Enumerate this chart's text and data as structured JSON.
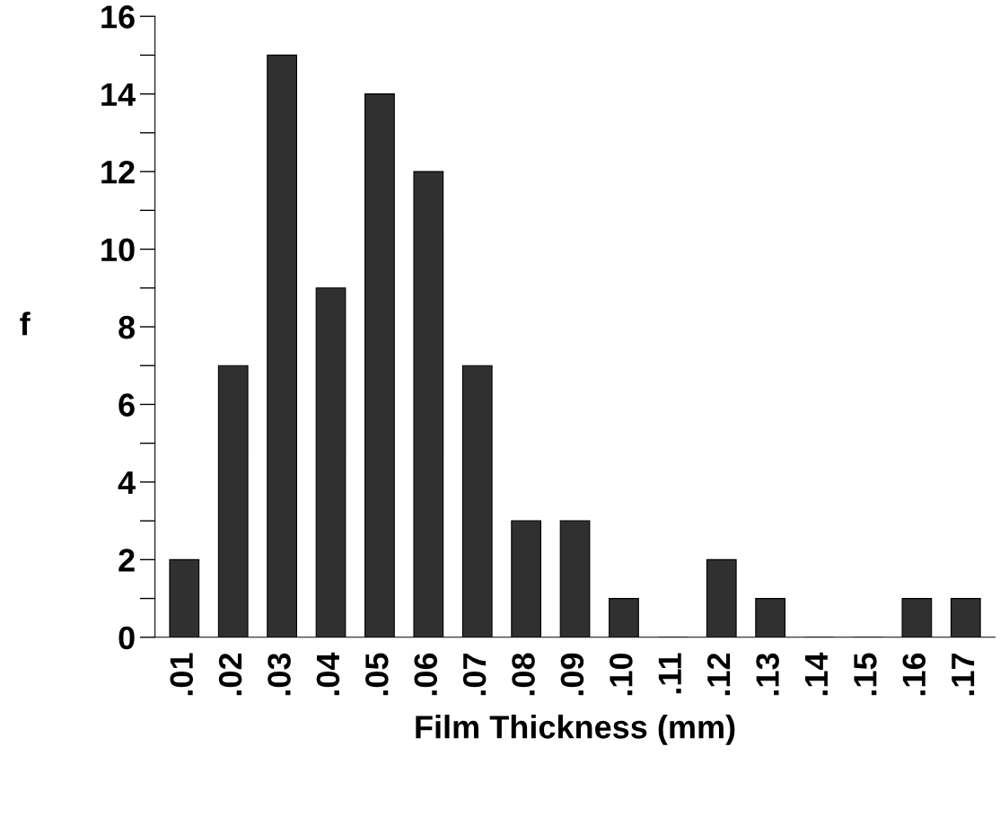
{
  "chart_data": {
    "type": "bar",
    "xlabel": "Film Thickness (mm)",
    "ylabel": "f",
    "categories": [
      ".01",
      ".02",
      ".03",
      ".04",
      ".05",
      ".06",
      ".07",
      ".08",
      ".09",
      ".10",
      ".11",
      ".12",
      ".13",
      ".14",
      ".15",
      ".16",
      ".17"
    ],
    "values": [
      2,
      7,
      15,
      9,
      14,
      12,
      7,
      3,
      3,
      1,
      0,
      2,
      1,
      0,
      0,
      1,
      1
    ],
    "color": "#303030",
    "ylim": [
      0,
      16
    ],
    "yticks": [
      0,
      2,
      4,
      6,
      8,
      10,
      12,
      14,
      16
    ],
    "grid": false,
    "legend": false
  }
}
